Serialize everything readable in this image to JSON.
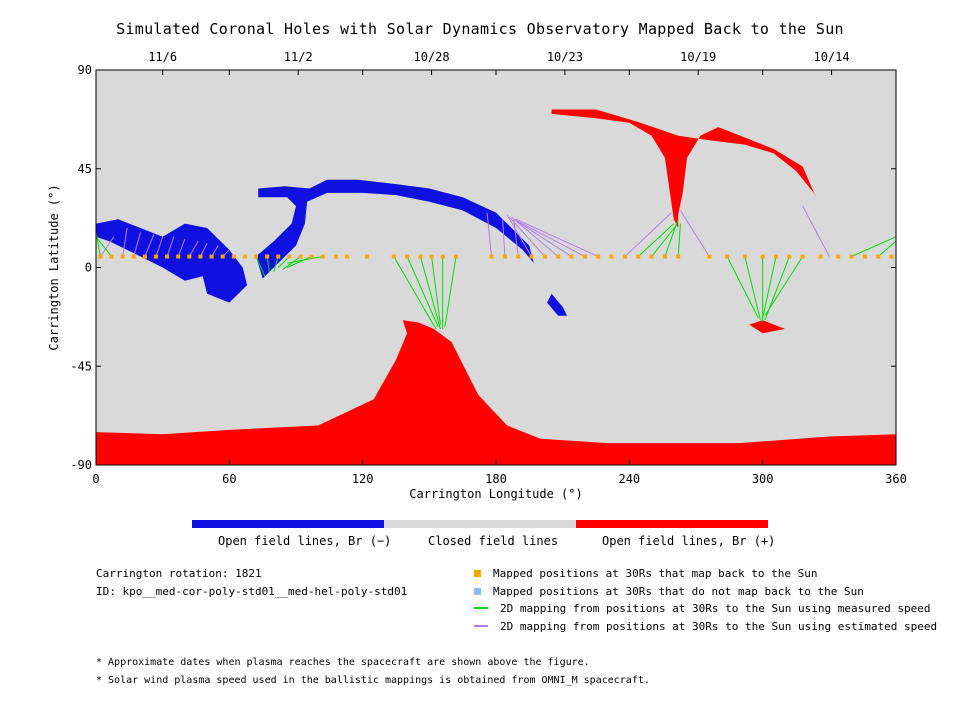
{
  "title": "Simulated Coronal Holes with Solar Dynamics Observatory Mapped Back to the Sun",
  "colors": {
    "closed": "#d9d9d9",
    "open_negative": "#1010e0",
    "open_positive": "#ff0000",
    "mapped": "#ffa500",
    "not_mapped": "#87bdf5",
    "measured_line": "#00e000",
    "estimated_line": "#b27fe8"
  },
  "chart_data": {
    "type": "map",
    "xlabel": "Carrington Longitude (°)",
    "ylabel": "Carrington Latitude (°)",
    "xlim": [
      0,
      360
    ],
    "ylim": [
      -90,
      90
    ],
    "x_ticks": [
      "0",
      "60",
      "120",
      "180",
      "240",
      "300",
      "360"
    ],
    "y_ticks": [
      "90",
      "45",
      "0",
      "-45",
      "-90"
    ],
    "top_date_ticks": [
      {
        "label": "11/6",
        "longitude": 30
      },
      {
        "label": "11/2",
        "longitude": 91
      },
      {
        "label": "10/28",
        "longitude": 151
      },
      {
        "label": "10/23",
        "longitude": 211
      },
      {
        "label": "10/19",
        "longitude": 271
      },
      {
        "label": "10/14",
        "longitude": 331
      }
    ],
    "open_negative_regions": [
      [
        [
          0,
          20
        ],
        [
          10,
          22
        ],
        [
          20,
          18
        ],
        [
          30,
          14
        ],
        [
          40,
          20
        ],
        [
          50,
          18
        ],
        [
          60,
          8
        ],
        [
          66,
          0
        ],
        [
          68,
          -8
        ],
        [
          60,
          -16
        ],
        [
          50,
          -12
        ],
        [
          48,
          -4
        ],
        [
          40,
          -6
        ],
        [
          30,
          0
        ],
        [
          18,
          6
        ],
        [
          6,
          12
        ],
        [
          0,
          14
        ]
      ],
      [
        [
          73,
          36
        ],
        [
          85,
          37
        ],
        [
          96,
          36
        ],
        [
          104,
          40
        ],
        [
          118,
          40
        ],
        [
          135,
          38
        ],
        [
          150,
          36
        ],
        [
          165,
          32
        ],
        [
          180,
          25
        ],
        [
          195,
          10
        ],
        [
          197,
          2
        ],
        [
          192,
          8
        ],
        [
          180,
          18
        ],
        [
          165,
          26
        ],
        [
          150,
          30
        ],
        [
          135,
          33
        ],
        [
          120,
          34
        ],
        [
          104,
          34
        ],
        [
          95,
          30
        ],
        [
          94,
          20
        ],
        [
          90,
          10
        ],
        [
          82,
          2
        ],
        [
          75,
          -5
        ],
        [
          72,
          5
        ],
        [
          80,
          12
        ],
        [
          88,
          20
        ],
        [
          90,
          28
        ],
        [
          86,
          32
        ],
        [
          73,
          32
        ]
      ],
      [
        [
          205,
          -12
        ],
        [
          210,
          -18
        ],
        [
          212,
          -22
        ],
        [
          208,
          -22
        ],
        [
          203,
          -16
        ]
      ]
    ],
    "open_positive_regions": [
      [
        [
          0,
          -75
        ],
        [
          30,
          -76
        ],
        [
          60,
          -74
        ],
        [
          100,
          -72
        ],
        [
          125,
          -60
        ],
        [
          135,
          -42
        ],
        [
          140,
          -30
        ],
        [
          138,
          -24
        ],
        [
          145,
          -25
        ],
        [
          152,
          -28
        ],
        [
          160,
          -34
        ],
        [
          172,
          -58
        ],
        [
          185,
          -72
        ],
        [
          200,
          -78
        ],
        [
          230,
          -80
        ],
        [
          260,
          -80
        ],
        [
          290,
          -80
        ],
        [
          330,
          -77
        ],
        [
          360,
          -76
        ],
        [
          360,
          -90
        ],
        [
          0,
          -90
        ]
      ],
      [
        [
          205,
          72
        ],
        [
          225,
          72
        ],
        [
          245,
          66
        ],
        [
          262,
          60
        ],
        [
          276,
          58
        ],
        [
          292,
          56
        ],
        [
          305,
          52
        ],
        [
          315,
          44
        ],
        [
          323,
          34
        ],
        [
          324,
          32
        ],
        [
          318,
          46
        ],
        [
          305,
          54
        ],
        [
          290,
          60
        ],
        [
          280,
          64
        ],
        [
          272,
          60
        ],
        [
          266,
          50
        ],
        [
          264,
          34
        ],
        [
          262,
          24
        ],
        [
          262,
          18
        ],
        [
          260,
          22
        ],
        [
          258,
          36
        ],
        [
          256,
          50
        ],
        [
          250,
          60
        ],
        [
          240,
          66
        ],
        [
          225,
          68
        ],
        [
          205,
          70
        ]
      ],
      [
        [
          294,
          -26
        ],
        [
          300,
          -30
        ],
        [
          310,
          -28
        ],
        [
          317,
          -27
        ],
        [
          310,
          -28
        ],
        [
          300,
          -24
        ]
      ]
    ],
    "mapped_longitudes": [
      2,
      7,
      12,
      17,
      22,
      27,
      32,
      37,
      42,
      47,
      52,
      57,
      62,
      67,
      72,
      77,
      82,
      87,
      92,
      97,
      102,
      108,
      113,
      122,
      134,
      140,
      146,
      151,
      156,
      162,
      178,
      184,
      190,
      196,
      202,
      208,
      214,
      220,
      226,
      232,
      238,
      244,
      250,
      256,
      262,
      276,
      284,
      292,
      300,
      306,
      312,
      318,
      326,
      334,
      340,
      346,
      352,
      358
    ],
    "not_mapped_longitudes": [],
    "measured_lines": [
      {
        "from": [
          2,
          5
        ],
        "to": [
          0,
          16
        ]
      },
      {
        "from": [
          7,
          5
        ],
        "to": [
          0,
          14
        ]
      },
      {
        "from": [
          72,
          5
        ],
        "to": [
          76,
          -4
        ]
      },
      {
        "from": [
          77,
          5
        ],
        "to": [
          78,
          -2
        ]
      },
      {
        "from": [
          82,
          5
        ],
        "to": [
          80,
          -2
        ]
      },
      {
        "from": [
          87,
          5
        ],
        "to": [
          82,
          0
        ]
      },
      {
        "from": [
          92,
          5
        ],
        "to": [
          84,
          -1
        ]
      },
      {
        "from": [
          97,
          5
        ],
        "to": [
          86,
          0
        ]
      },
      {
        "from": [
          102,
          5
        ],
        "to": [
          86,
          2
        ]
      },
      {
        "from": [
          134,
          5
        ],
        "to": [
          153,
          -28
        ]
      },
      {
        "from": [
          140,
          5
        ],
        "to": [
          154,
          -27
        ]
      },
      {
        "from": [
          146,
          5
        ],
        "to": [
          155,
          -28
        ]
      },
      {
        "from": [
          151,
          5
        ],
        "to": [
          155,
          -26
        ]
      },
      {
        "from": [
          156,
          5
        ],
        "to": [
          156,
          -28
        ]
      },
      {
        "from": [
          162,
          5
        ],
        "to": [
          157,
          -27
        ]
      },
      {
        "from": [
          244,
          5
        ],
        "to": [
          260,
          20
        ]
      },
      {
        "from": [
          250,
          5
        ],
        "to": [
          261,
          19
        ]
      },
      {
        "from": [
          256,
          5
        ],
        "to": [
          262,
          22
        ]
      },
      {
        "from": [
          262,
          5
        ],
        "to": [
          263,
          20
        ]
      },
      {
        "from": [
          284,
          5
        ],
        "to": [
          298,
          -23
        ]
      },
      {
        "from": [
          292,
          5
        ],
        "to": [
          299,
          -24
        ]
      },
      {
        "from": [
          300,
          5
        ],
        "to": [
          300,
          -25
        ]
      },
      {
        "from": [
          306,
          5
        ],
        "to": [
          300,
          -23
        ]
      },
      {
        "from": [
          312,
          5
        ],
        "to": [
          301,
          -24
        ]
      },
      {
        "from": [
          318,
          5
        ],
        "to": [
          301,
          -22
        ]
      },
      {
        "from": [
          340,
          5
        ],
        "to": [
          360,
          14
        ]
      },
      {
        "from": [
          352,
          5
        ],
        "to": [
          360,
          12
        ]
      }
    ],
    "estimated_lines": [
      {
        "from": [
          2,
          5
        ],
        "to": [
          8,
          14
        ]
      },
      {
        "from": [
          12,
          5
        ],
        "to": [
          14,
          18
        ]
      },
      {
        "from": [
          17,
          5
        ],
        "to": [
          20,
          16
        ]
      },
      {
        "from": [
          22,
          5
        ],
        "to": [
          26,
          15
        ]
      },
      {
        "from": [
          27,
          5
        ],
        "to": [
          30,
          14
        ]
      },
      {
        "from": [
          32,
          5
        ],
        "to": [
          35,
          14
        ]
      },
      {
        "from": [
          37,
          5
        ],
        "to": [
          40,
          13
        ]
      },
      {
        "from": [
          42,
          5
        ],
        "to": [
          46,
          12
        ]
      },
      {
        "from": [
          47,
          5
        ],
        "to": [
          50,
          11
        ]
      },
      {
        "from": [
          52,
          5
        ],
        "to": [
          55,
          10
        ]
      },
      {
        "from": [
          57,
          5
        ],
        "to": [
          60,
          8
        ]
      },
      {
        "from": [
          178,
          5
        ],
        "to": [
          176,
          25
        ]
      },
      {
        "from": [
          184,
          5
        ],
        "to": [
          183,
          22
        ]
      },
      {
        "from": [
          190,
          5
        ],
        "to": [
          188,
          22
        ]
      },
      {
        "from": [
          196,
          5
        ],
        "to": [
          185,
          24
        ]
      },
      {
        "from": [
          202,
          5
        ],
        "to": [
          186,
          23
        ]
      },
      {
        "from": [
          208,
          5
        ],
        "to": [
          187,
          23
        ]
      },
      {
        "from": [
          214,
          5
        ],
        "to": [
          188,
          22
        ]
      },
      {
        "from": [
          220,
          5
        ],
        "to": [
          188,
          22
        ]
      },
      {
        "from": [
          226,
          5
        ],
        "to": [
          189,
          22
        ]
      },
      {
        "from": [
          238,
          5
        ],
        "to": [
          259,
          25
        ]
      },
      {
        "from": [
          276,
          5
        ],
        "to": [
          263,
          26
        ]
      },
      {
        "from": [
          330,
          5
        ],
        "to": [
          318,
          28
        ]
      }
    ]
  },
  "colorbar": {
    "open_negative_label": "Open field lines, Br (−)",
    "closed_label": "Closed field lines",
    "open_positive_label": "Open field lines, Br (+)"
  },
  "info": {
    "rotation": "Carrington rotation: 1821",
    "id": "ID: kpo__med-cor-poly-std01__med-hel-poly-std01"
  },
  "legend": {
    "mapped": "Mapped positions at 30Rs that map back to the Sun",
    "not_mapped": "Mapped positions at 30Rs that do not map back to the Sun",
    "measured": "2D mapping from positions at 30Rs to the Sun using measured speed",
    "estimated": "2D mapping from positions at 30Rs to the Sun using estimated speed"
  },
  "notes": [
    "* Approximate dates when plasma reaches the spacecraft are shown above the figure.",
    "* Solar wind plasma speed used in the ballistic mappings is obtained from OMNI_M spacecraft."
  ]
}
